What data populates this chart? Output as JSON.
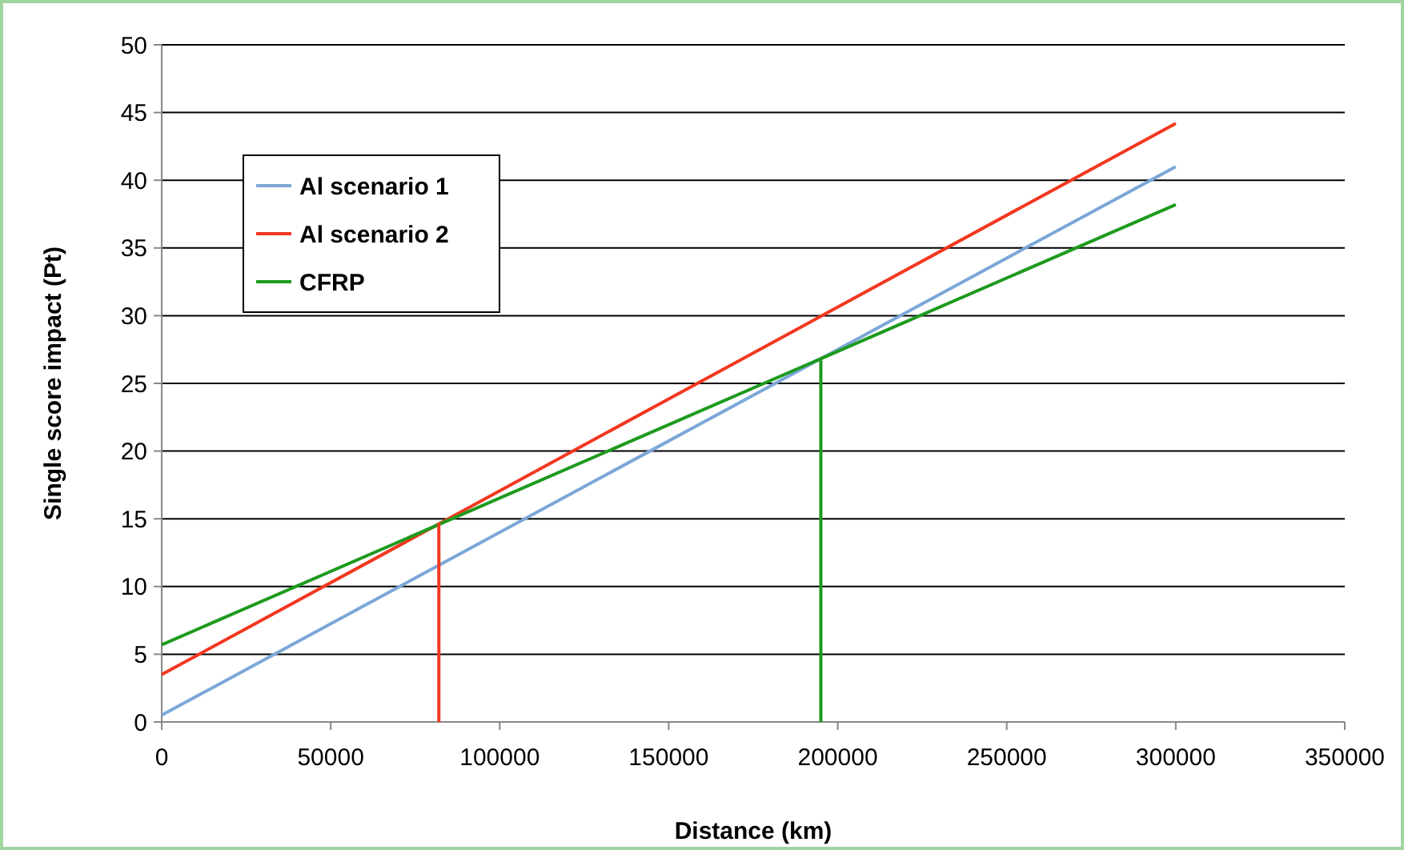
{
  "chart_data": {
    "type": "line",
    "xlabel": "Distance (km)",
    "ylabel": "Single score impact (Pt)",
    "xlim": [
      0,
      350000
    ],
    "xticks": [
      0,
      50000,
      100000,
      150000,
      200000,
      250000,
      300000,
      350000
    ],
    "ylim": [
      0,
      50
    ],
    "yticks": [
      0,
      5,
      10,
      15,
      20,
      25,
      30,
      35,
      40,
      45,
      50
    ],
    "grid": "y",
    "legend": "top left",
    "marker": "none",
    "line_style": "solid",
    "series": [
      {
        "name": "Al scenario 1",
        "color": "#7ba7d8",
        "x": [
          0,
          300000
        ],
        "values": [
          0.5,
          41
        ]
      },
      {
        "name": "Al scenario 2",
        "color": "#f2371f",
        "x": [
          0,
          300000
        ],
        "values": [
          3.5,
          44.2
        ]
      },
      {
        "name": "CFRP",
        "color": "#1e9a1e",
        "x": [
          0,
          300000
        ],
        "values": [
          5.7,
          38.2
        ]
      },
      {
        "color": "#f2371f",
        "x": [
          82000,
          82000
        ],
        "values": [
          0,
          14.7
        ]
      },
      {
        "color": "#1e9a1e",
        "x": [
          195000,
          195000
        ],
        "values": [
          0,
          26.7
        ]
      }
    ]
  }
}
